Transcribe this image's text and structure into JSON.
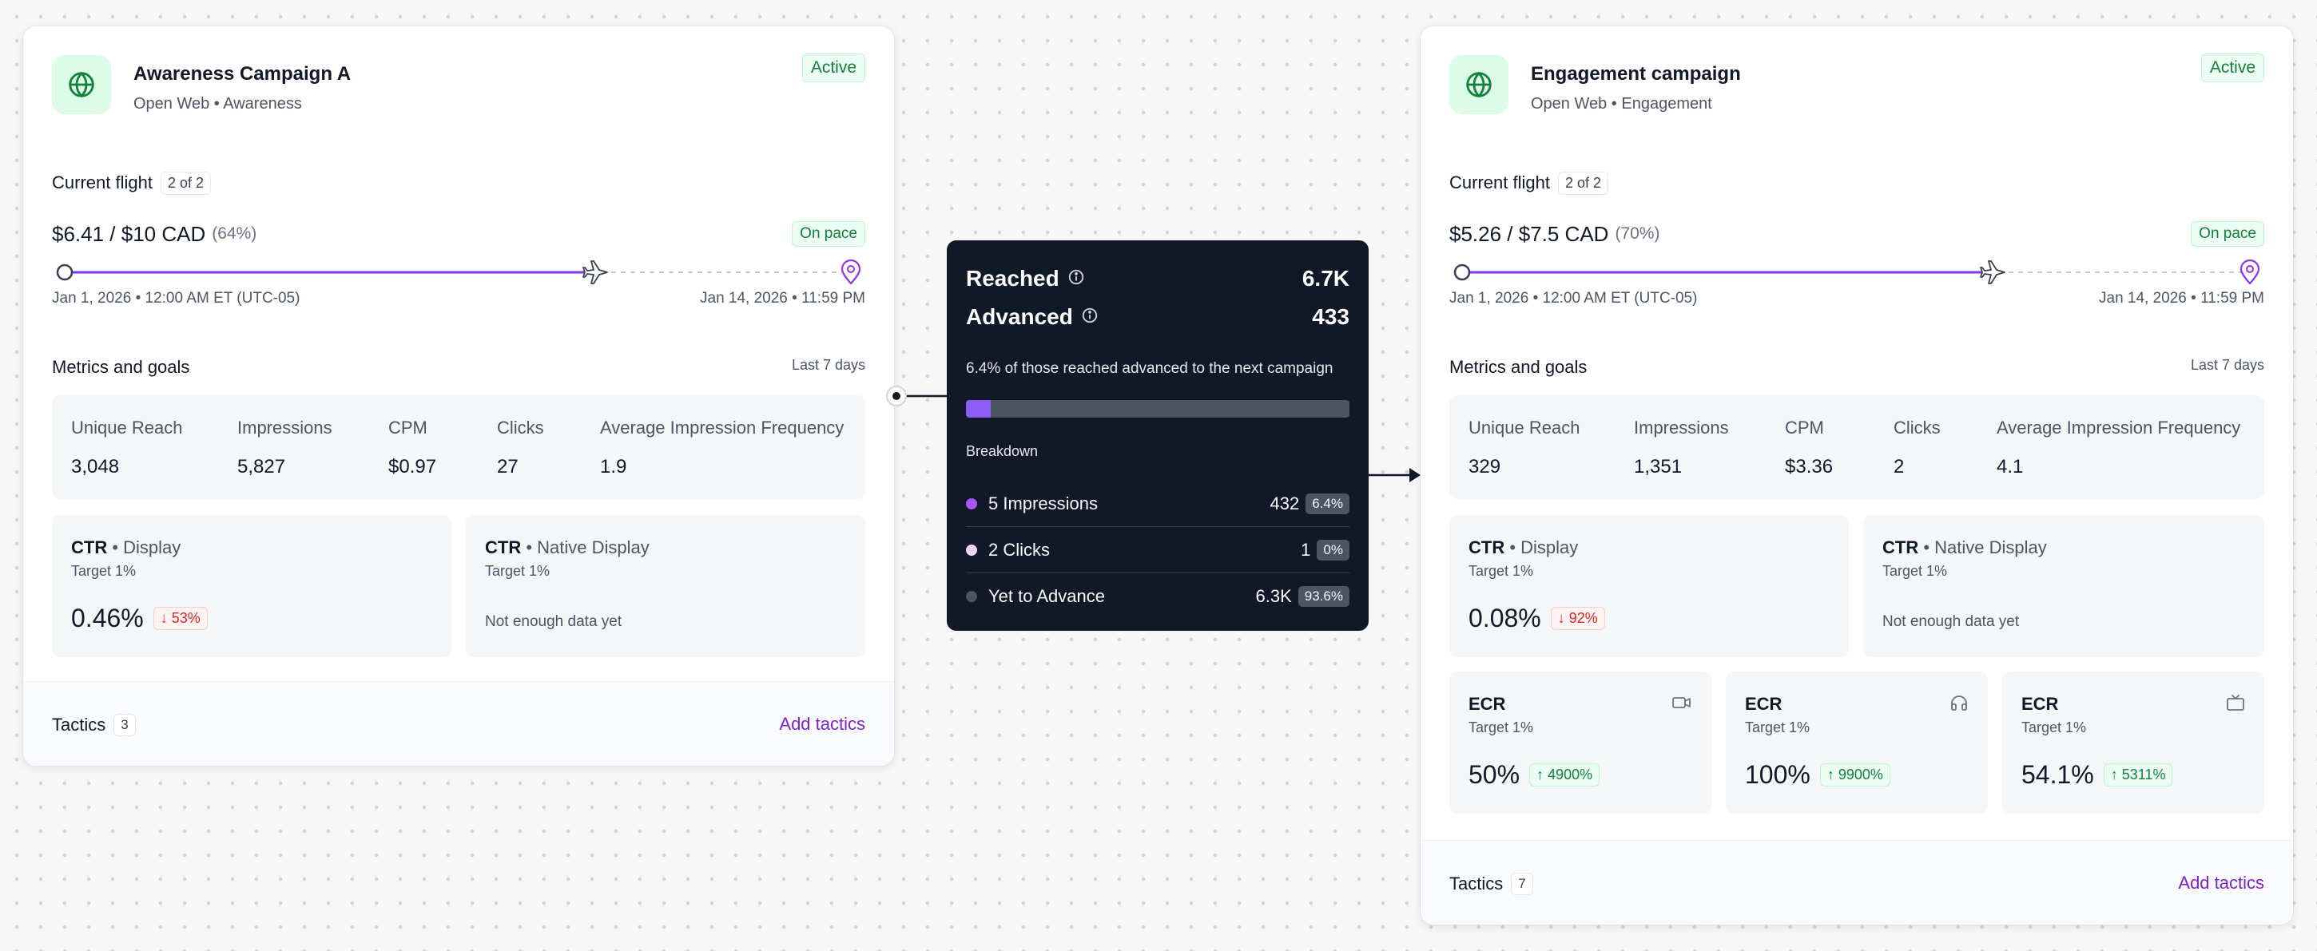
{
  "colors": {
    "accent": "#7e22ce",
    "progress": "#7c3aed",
    "success": "#15803d",
    "danger": "#dc2626",
    "popover_bg": "#111827"
  },
  "campaign_a": {
    "title": "Awareness Campaign A",
    "subtitle": "Open Web • Awareness",
    "status": "Active",
    "icon": "globe-icon",
    "flight_label": "Current flight",
    "flight_count": "2 of 2",
    "budget": "$6.41 / $10 CAD",
    "budget_pct": "(64%)",
    "pace": "On pace",
    "progress": 0.64,
    "start_date": "Jan 1, 2026 • 12:00 AM ET (UTC-05)",
    "end_date": "Jan 14, 2026 • 11:59 PM",
    "metrics_title": "Metrics and goals",
    "metrics_range": "Last 7 days",
    "metrics": [
      {
        "label": "Unique Reach",
        "value": "3,048"
      },
      {
        "label": "Impressions",
        "value": "5,827"
      },
      {
        "label": "CPM",
        "value": "$0.97"
      },
      {
        "label": "Clicks",
        "value": "27"
      },
      {
        "label": "Average Impression Frequency",
        "value": "1.9"
      }
    ],
    "goals": [
      {
        "title": "CTR",
        "channel": "• Display",
        "target": "Target 1%",
        "value": "0.46%",
        "delta": "53%",
        "direction": "down"
      },
      {
        "title": "CTR",
        "channel": "• Native Display",
        "target": "Target 1%",
        "note": "Not enough data yet"
      }
    ],
    "tactics_label": "Tactics",
    "tactics_count": "3",
    "add_tactics": "Add tactics"
  },
  "campaign_b": {
    "title": "Engagement campaign",
    "subtitle": "Open Web • Engagement",
    "status": "Active",
    "icon": "globe-icon",
    "flight_label": "Current flight",
    "flight_count": "2 of 2",
    "budget": "$5.26 / $7.5 CAD",
    "budget_pct": "(70%)",
    "pace": "On pace",
    "progress": 0.7,
    "start_date": "Jan 1, 2026 • 12:00 AM ET (UTC-05)",
    "end_date": "Jan 14, 2026 • 11:59 PM",
    "metrics_title": "Metrics and goals",
    "metrics_range": "Last 7 days",
    "metrics": [
      {
        "label": "Unique Reach",
        "value": "329"
      },
      {
        "label": "Impressions",
        "value": "1,351"
      },
      {
        "label": "CPM",
        "value": "$3.36"
      },
      {
        "label": "Clicks",
        "value": "2"
      },
      {
        "label": "Average Impression Frequency",
        "value": "4.1"
      }
    ],
    "goals": [
      {
        "title": "CTR",
        "channel": "• Display",
        "target": "Target 1%",
        "value": "0.08%",
        "delta": "92%",
        "direction": "down"
      },
      {
        "title": "CTR",
        "channel": "• Native Display",
        "target": "Target 1%",
        "note": "Not enough data yet"
      }
    ],
    "ecr": [
      {
        "title": "ECR",
        "target": "Target 1%",
        "value": "50%",
        "delta": "4900%",
        "direction": "up",
        "icon": "video-icon"
      },
      {
        "title": "ECR",
        "target": "Target 1%",
        "value": "100%",
        "delta": "9900%",
        "direction": "up",
        "icon": "headphones-icon"
      },
      {
        "title": "ECR",
        "target": "Target 1%",
        "value": "54.1%",
        "delta": "5311%",
        "direction": "up",
        "icon": "tv-icon"
      }
    ],
    "tactics_label": "Tactics",
    "tactics_count": "7",
    "add_tactics": "Add tactics"
  },
  "popover": {
    "reached_label": "Reached",
    "reached_value": "6.7K",
    "advanced_label": "Advanced",
    "advanced_value": "433",
    "description": "6.4% of those reached advanced to the next campaign",
    "advance_rate": 0.064,
    "breakdown_label": "Breakdown",
    "breakdown": [
      {
        "label": "5 Impressions",
        "value": "432",
        "pct": "6.4%",
        "color": "#a855f7"
      },
      {
        "label": "2 Clicks",
        "value": "1",
        "pct": "0%",
        "color": "#f5d0fe"
      },
      {
        "label": "Yet to Advance",
        "value": "6.3K",
        "pct": "93.6%",
        "color": "#4b5563"
      }
    ]
  }
}
